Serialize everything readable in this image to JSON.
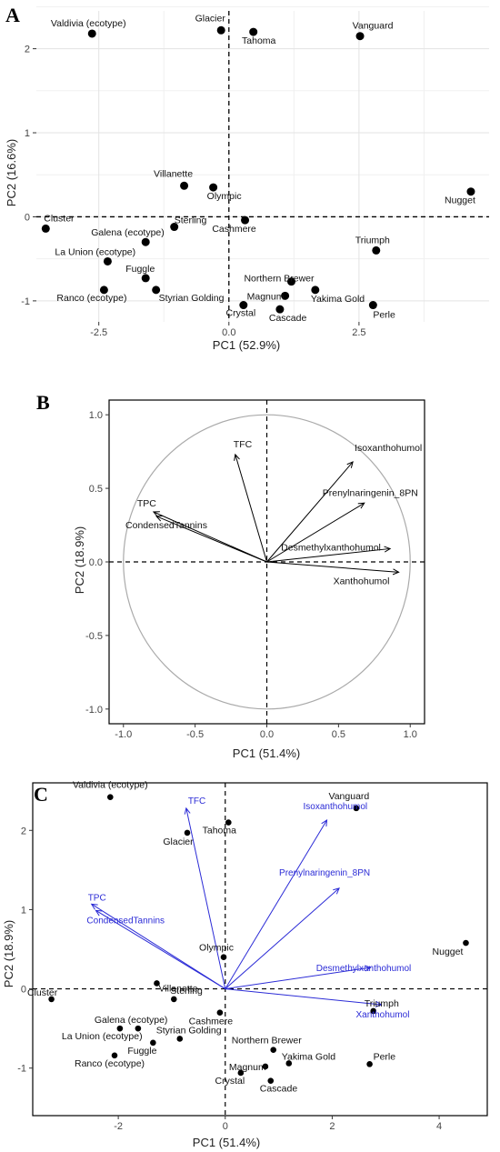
{
  "chart_data": [
    {
      "type": "scatter",
      "panel": "A",
      "xlabel": "PC1 (52.9%)",
      "ylabel": "PC2 (16.6%)",
      "xlim": [
        -3.7,
        5.0
      ],
      "ylim": [
        -1.25,
        2.45
      ],
      "xticks": [
        -2.5,
        0.0,
        2.5
      ],
      "xtick_labels": [
        "-2.5",
        "0.0",
        "2.5"
      ],
      "yticks": [
        -1,
        0,
        1,
        2
      ],
      "ytick_labels": [
        "-1",
        "0",
        "1",
        "2"
      ],
      "grid": true,
      "points": [
        {
          "label": "Valdivia (ecotype)",
          "x": -2.63,
          "y": 2.18
        },
        {
          "label": "Glacier",
          "x": -0.15,
          "y": 2.22
        },
        {
          "label": "Tahoma",
          "x": 0.47,
          "y": 2.2
        },
        {
          "label": "Vanguard",
          "x": 2.52,
          "y": 2.15
        },
        {
          "label": "Villanette",
          "x": -0.86,
          "y": 0.37
        },
        {
          "label": "Olympic",
          "x": -0.3,
          "y": 0.35
        },
        {
          "label": "Nugget",
          "x": 4.65,
          "y": 0.3
        },
        {
          "label": "Cluster",
          "x": -3.52,
          "y": -0.14
        },
        {
          "label": "Sterling",
          "x": -1.05,
          "y": -0.12
        },
        {
          "label": "Cashmere",
          "x": 0.31,
          "y": -0.04
        },
        {
          "label": "Galena (ecotype)",
          "x": -1.6,
          "y": -0.3
        },
        {
          "label": "Triumph",
          "x": 2.83,
          "y": -0.4
        },
        {
          "label": "La Union (ecotype)",
          "x": -2.33,
          "y": -0.53
        },
        {
          "label": "Fuggle",
          "x": -1.6,
          "y": -0.73
        },
        {
          "label": "Northern Brewer",
          "x": 1.2,
          "y": -0.77
        },
        {
          "label": "Ranco (ecotype)",
          "x": -2.4,
          "y": -0.87
        },
        {
          "label": "Styrian Golding",
          "x": -1.4,
          "y": -0.87
        },
        {
          "label": "Yakima Gold",
          "x": 1.66,
          "y": -0.87
        },
        {
          "label": "Magnum",
          "x": 1.08,
          "y": -0.94
        },
        {
          "label": "Crystal",
          "x": 0.28,
          "y": -1.05
        },
        {
          "label": "Cascade",
          "x": 0.98,
          "y": -1.1
        },
        {
          "label": "Perle",
          "x": 2.77,
          "y": -1.05
        }
      ]
    },
    {
      "type": "scatter",
      "panel": "B",
      "subtype": "correlation-circle",
      "xlabel": "PC1 (51.4%)",
      "ylabel": "PC2 (18.9%)",
      "xlim": [
        -1.1,
        1.1
      ],
      "ylim": [
        -1.1,
        1.1
      ],
      "xticks": [
        -1.0,
        -0.5,
        0.0,
        0.5,
        1.0
      ],
      "xtick_labels": [
        "-1.0",
        "-0.5",
        "0.0",
        "0.5",
        "1.0"
      ],
      "yticks": [
        -1.0,
        -0.5,
        0.0,
        0.5,
        1.0
      ],
      "ytick_labels": [
        "-1.0",
        "-0.5",
        "0.0",
        "0.5",
        "1.0"
      ],
      "grid": false,
      "vectors": [
        {
          "label": "TFC",
          "x": -0.22,
          "y": 0.73
        },
        {
          "label": "Isoxanthohumol",
          "x": 0.6,
          "y": 0.68
        },
        {
          "label": "Prenylnaringenin_8PN",
          "x": 0.68,
          "y": 0.4
        },
        {
          "label": "TPC",
          "x": -0.79,
          "y": 0.34
        },
        {
          "label": "CondensedTannins",
          "x": -0.77,
          "y": 0.31
        },
        {
          "label": "Desmethylxanthohumol",
          "x": 0.86,
          "y": 0.09
        },
        {
          "label": "Xanthohumol",
          "x": 0.92,
          "y": -0.07
        }
      ]
    },
    {
      "type": "scatter",
      "panel": "C",
      "subtype": "biplot",
      "xlabel": "PC1 (51.4%)",
      "ylabel": "PC2 (18.9%)",
      "xlim": [
        -3.6,
        4.9
      ],
      "ylim": [
        -1.6,
        2.6
      ],
      "xticks": [
        -2,
        0,
        2,
        4
      ],
      "xtick_labels": [
        "-2",
        "0",
        "2",
        "4"
      ],
      "yticks": [
        -1,
        0,
        1,
        2
      ],
      "ytick_labels": [
        "-1",
        "0",
        "1",
        "2"
      ],
      "grid": false,
      "points": [
        {
          "label": "Valdivia (ecotype)",
          "x": -2.15,
          "y": 2.42
        },
        {
          "label": "Tahoma",
          "x": 0.06,
          "y": 2.1
        },
        {
          "label": "Glacier",
          "x": -0.71,
          "y": 1.97
        },
        {
          "label": "Vanguard",
          "x": 2.45,
          "y": 2.28
        },
        {
          "label": "Olympic",
          "x": -0.03,
          "y": 0.4
        },
        {
          "label": "Nugget",
          "x": 4.5,
          "y": 0.58
        },
        {
          "label": "Villanette",
          "x": -1.28,
          "y": 0.07
        },
        {
          "label": "Sterling",
          "x": -0.96,
          "y": -0.13
        },
        {
          "label": "Cluster",
          "x": -3.25,
          "y": -0.13
        },
        {
          "label": "Cashmere",
          "x": -0.1,
          "y": -0.3
        },
        {
          "label": "Triumph",
          "x": 2.77,
          "y": -0.28
        },
        {
          "label": "Galena (ecotype)",
          "x": -1.97,
          "y": -0.5
        },
        {
          "label": "La Union (ecotype)",
          "x": -1.63,
          "y": -0.5
        },
        {
          "label": "Styrian Golding",
          "x": -0.85,
          "y": -0.63
        },
        {
          "label": "Fuggle",
          "x": -1.35,
          "y": -0.68
        },
        {
          "label": "Northern Brewer",
          "x": 0.9,
          "y": -0.77
        },
        {
          "label": "Ranco (ecotype)",
          "x": -2.07,
          "y": -0.84
        },
        {
          "label": "Yakima Gold",
          "x": 1.19,
          "y": -0.94
        },
        {
          "label": "Magnum",
          "x": 0.75,
          "y": -0.98
        },
        {
          "label": "Perle",
          "x": 2.7,
          "y": -0.95
        },
        {
          "label": "Crystal",
          "x": 0.29,
          "y": -1.06
        },
        {
          "label": "Cascade",
          "x": 0.85,
          "y": -1.16
        }
      ],
      "vectors": [
        {
          "label": "TFC",
          "x": -0.73,
          "y": 2.28
        },
        {
          "label": "Isoxanthohumol",
          "x": 1.9,
          "y": 2.13
        },
        {
          "label": "Prenylnaringenin_8PN",
          "x": 2.13,
          "y": 1.27
        },
        {
          "label": "TPC",
          "x": -2.5,
          "y": 1.07
        },
        {
          "label": "CondensedTannins",
          "x": -2.42,
          "y": 0.99
        },
        {
          "label": "Desmethylxanthohumol",
          "x": 2.72,
          "y": 0.27
        },
        {
          "label": "Xanthohumol",
          "x": 2.92,
          "y": -0.2
        }
      ],
      "colors": {
        "vector": "#2b2bd6"
      }
    }
  ]
}
